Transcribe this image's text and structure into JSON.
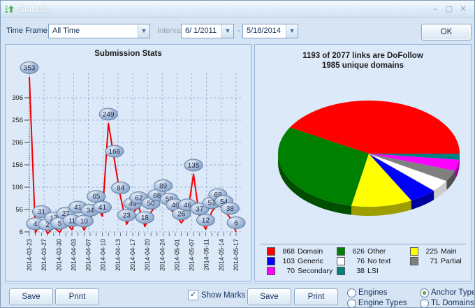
{
  "window": {
    "title": "Statistics",
    "minimize_glyph": "‒",
    "maximize_glyph": "▢",
    "close_glyph": "✕"
  },
  "controls": {
    "time_frame_label": "Time Frame",
    "time_frame_value": "All Time",
    "interval_label": "Interval",
    "date_from": "6/ 1/2011",
    "date_separator": "-",
    "date_to": "5/18/2014",
    "combo_arrow_glyph": "▼",
    "ok_label": "OK"
  },
  "chart_data": [
    {
      "type": "line",
      "title": "Submission Stats",
      "series": [
        {
          "name": "Submissions",
          "values": [
            353,
            4,
            31,
            2,
            17,
            5,
            27,
            11,
            41,
            10,
            34,
            65,
            41,
            249,
            166,
            84,
            23,
            49,
            62,
            18,
            50,
            68,
            89,
            59,
            46,
            26,
            46,
            135,
            37,
            12,
            51,
            69,
            54,
            38,
            6
          ]
        }
      ],
      "x_labels": [
        "2014-03-23",
        "2014-03-27",
        "2014-03-30",
        "2014-04-03",
        "2014-04-07",
        "2014-04-10",
        "2014-04-13",
        "2014-04-17",
        "2014-04-20",
        "2014-04-24",
        "2014-05-01",
        "2014-05-07",
        "2014-05-11",
        "2014-05-14",
        "2014-05-17"
      ],
      "y_ticks": [
        6,
        56,
        106,
        156,
        206,
        256,
        306
      ],
      "ylim": [
        6,
        360
      ],
      "grid": true,
      "show_marks": true,
      "line_color": "#f20000",
      "grid_color": "#9cb4dd"
    },
    {
      "type": "pie",
      "title_line1": "1193 of 2077 links are DoFollow",
      "title_line2": "1985 unique domains",
      "total": 2077,
      "legend_position": "bottom",
      "slices": [
        {
          "label": "Domain",
          "value": 868,
          "color": "#ff0000"
        },
        {
          "label": "Other",
          "value": 626,
          "color": "#008000"
        },
        {
          "label": "Main",
          "value": 225,
          "color": "#ffff00"
        },
        {
          "label": "Generic",
          "value": 103,
          "color": "#0000ff"
        },
        {
          "label": "No text",
          "value": 76,
          "color": "#ffffff"
        },
        {
          "label": "Partial",
          "value": 71,
          "color": "#808080"
        },
        {
          "label": "Secondary",
          "value": 70,
          "color": "#ff00ff"
        },
        {
          "label": "LSI",
          "value": 38,
          "color": "#008080"
        }
      ]
    }
  ],
  "footer": {
    "save_label": "Save",
    "print_label": "Print",
    "show_marks_label": "Show Marks",
    "show_marks_checked": true,
    "check_glyph": "✓",
    "save2_label": "Save",
    "print2_label": "Print",
    "radios": [
      {
        "label": "Engines",
        "selected": false
      },
      {
        "label": "Engine Types",
        "selected": false
      },
      {
        "label": "Anchor Type",
        "selected": true
      },
      {
        "label": "TL Domains",
        "selected": false
      }
    ]
  }
}
